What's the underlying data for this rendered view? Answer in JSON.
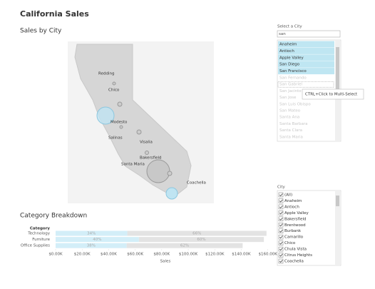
{
  "header": {
    "title": "California Sales"
  },
  "map": {
    "title": "Sales by City",
    "cities": [
      "Redding",
      "Chico",
      "Modesto",
      "Salinas",
      "Visalia",
      "Bakersfield",
      "Santa Maria",
      "Coachella"
    ]
  },
  "city_selector": {
    "label": "Select a City",
    "search": "san",
    "selected": [
      "Anaheim",
      "Antioch",
      "Apple Valley",
      "San Diego",
      "San Francisco"
    ],
    "others": [
      "San Fernando",
      "San Gabriel",
      "San Jacinto",
      "San Jose",
      "San Luis Obispo",
      "San Mateo",
      "Santa Ana",
      "Santa Barbara",
      "Santa Clara",
      "Santa Maria"
    ],
    "tooltip": "CTRL+Click to Multi-Select"
  },
  "city_filter": {
    "label": "City",
    "items": [
      "(All)",
      "Anaheim",
      "Antioch",
      "Apple Valley",
      "Bakersfield",
      "Brentwood",
      "Burbank",
      "Camarillo",
      "Chico",
      "Chula Vista",
      "Citrus Heights",
      "Coachella"
    ]
  },
  "chart_data": {
    "type": "bar",
    "title": "Category Breakdown",
    "category_label": "Category",
    "categories": [
      "Technology",
      "Furniture",
      "Office Supplies"
    ],
    "totals": [
      159,
      157,
      141
    ],
    "series": [
      {
        "color": "#d3eef8",
        "values": [
          34,
          40,
          38
        ],
        "value_labels": [
          "34%",
          "40%",
          "38%"
        ]
      },
      {
        "color": "#e3e3e3",
        "values": [
          66,
          60,
          62
        ],
        "value_labels": [
          "66%",
          "60%",
          "62%"
        ]
      }
    ],
    "xlabel": "Sales",
    "xlim": [
      0,
      165
    ],
    "xticks": [
      {
        "value": 0,
        "label": "$0.00K"
      },
      {
        "value": 20,
        "label": "$20.00K"
      },
      {
        "value": 40,
        "label": "$40.00K"
      },
      {
        "value": 60,
        "label": "$60.00K"
      },
      {
        "value": 80,
        "label": "$80.00K"
      },
      {
        "value": 100,
        "label": "$100.00K"
      },
      {
        "value": 120,
        "label": "$120.00K"
      },
      {
        "value": 140,
        "label": "$140.00K"
      },
      {
        "value": 160,
        "label": "$160.00K"
      }
    ]
  }
}
